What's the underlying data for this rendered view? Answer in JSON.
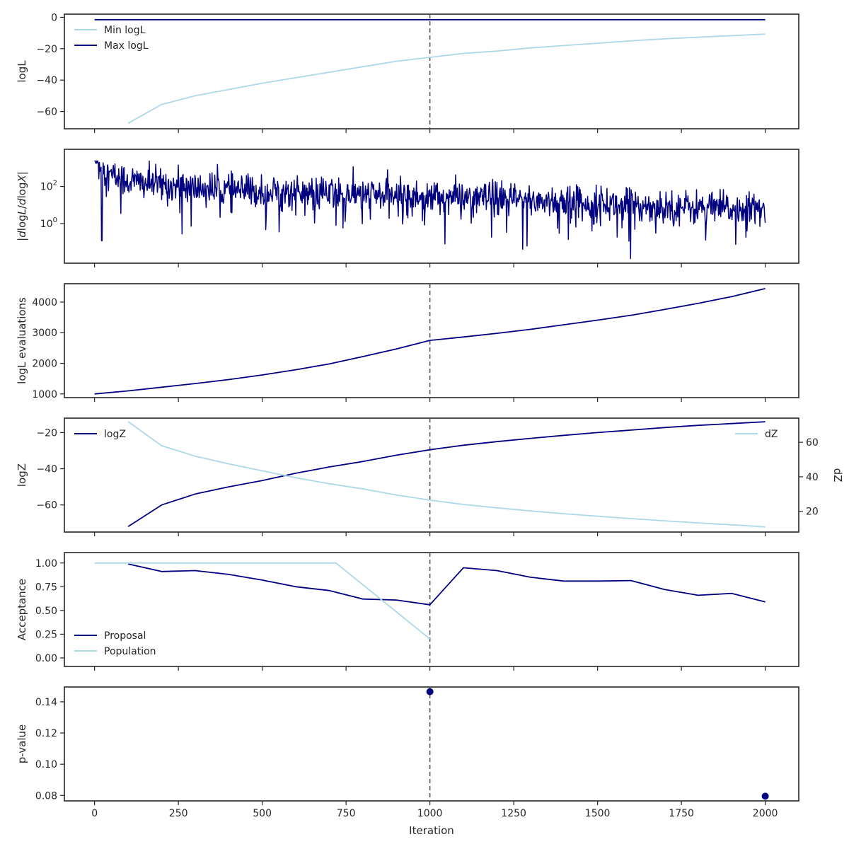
{
  "figure": {
    "xlabel": "Iteration",
    "xlim": [
      -90,
      2100
    ],
    "xticks": [
      0,
      250,
      500,
      750,
      1000,
      1250,
      1500,
      1750,
      2000
    ],
    "vline_x": 1000,
    "colors": {
      "light": "#add8e6",
      "dark": "#000080",
      "vline": "#555555",
      "frame": "#262626"
    }
  },
  "chart_data": [
    {
      "type": "line",
      "ylabel": "logL",
      "ylim": [
        -71,
        2
      ],
      "yticks": [
        0,
        -20,
        -40,
        -60
      ],
      "yticklabels": [
        "0",
        "−20",
        "−40",
        "−60"
      ],
      "legend": "upper-left",
      "series": [
        {
          "name": "Min logL",
          "color": "light",
          "x": [
            100,
            200,
            300,
            400,
            500,
            600,
            700,
            800,
            900,
            1000,
            1100,
            1200,
            1300,
            1400,
            1500,
            1600,
            1700,
            1800,
            1900,
            2000
          ],
          "y": [
            -67.5,
            -55.5,
            -50,
            -46,
            -42,
            -38.5,
            -35,
            -31.5,
            -28,
            -25.5,
            -23,
            -21.5,
            -19.5,
            -18,
            -16.5,
            -15,
            -13.7,
            -12.7,
            -11.7,
            -10.7
          ]
        },
        {
          "name": "Max logL",
          "color": "dark",
          "x": [
            0,
            2000
          ],
          "y": [
            -1.5,
            -1.5
          ]
        }
      ]
    },
    {
      "type": "line",
      "ylabel": "|dlogL/dlogX|",
      "yscale": "log",
      "ylim": [
        0.0074,
        10000
      ],
      "yticks": [
        1,
        100
      ],
      "yticklabels": [
        "10^0",
        "10^2"
      ],
      "series": [
        {
          "name": "",
          "color": "dark",
          "noise": true,
          "x": [
            0,
            100,
            200,
            300,
            400,
            500,
            600,
            700,
            800,
            900,
            1000,
            1100,
            1200,
            1300,
            1400,
            1500,
            1600,
            1700,
            1800,
            1900,
            2000
          ],
          "y": [
            700,
            200,
            120,
            80,
            60,
            50,
            45,
            40,
            35,
            30,
            28,
            25,
            20,
            18,
            15,
            12,
            10,
            8,
            7,
            6,
            5
          ]
        }
      ]
    },
    {
      "type": "line",
      "ylabel": "logL evaluations",
      "ylim": [
        880,
        4600
      ],
      "yticks": [
        1000,
        2000,
        3000,
        4000
      ],
      "yticklabels": [
        "1000",
        "2000",
        "3000",
        "4000"
      ],
      "series": [
        {
          "name": "",
          "color": "dark",
          "x": [
            0,
            100,
            200,
            300,
            400,
            500,
            600,
            700,
            800,
            900,
            1000,
            1100,
            1200,
            1300,
            1400,
            1500,
            1600,
            1700,
            1800,
            1900,
            2000
          ],
          "y": [
            1000,
            1100,
            1220,
            1340,
            1470,
            1620,
            1790,
            1980,
            2220,
            2470,
            2750,
            2860,
            2980,
            3110,
            3260,
            3410,
            3570,
            3760,
            3960,
            4180,
            4440
          ]
        }
      ]
    },
    {
      "type": "line",
      "ylabel": "logZ",
      "ylim": [
        -75,
        -12
      ],
      "yticks": [
        -20,
        -40,
        -60
      ],
      "yticklabels": [
        "−20",
        "−40",
        "−60"
      ],
      "legend": "upper-left",
      "series": [
        {
          "name": "logZ",
          "color": "dark",
          "x": [
            100,
            200,
            300,
            400,
            500,
            600,
            700,
            800,
            900,
            1000,
            1100,
            1200,
            1300,
            1400,
            1500,
            1600,
            1700,
            1800,
            1900,
            2000
          ],
          "y": [
            -72,
            -60,
            -54,
            -50,
            -46.5,
            -42.5,
            -39,
            -36,
            -32.5,
            -29.5,
            -27,
            -25,
            -23.2,
            -21.5,
            -20,
            -18.6,
            -17.2,
            -16,
            -15,
            -14
          ]
        }
      ],
      "twin": {
        "ylabel": "dZ",
        "ylim": [
          8,
          74
        ],
        "yticks": [
          20,
          40,
          60
        ],
        "yticklabels": [
          "20",
          "40",
          "60"
        ],
        "legend": "upper-right",
        "series": [
          {
            "name": "dZ",
            "color": "light",
            "x": [
              100,
              200,
              300,
              400,
              500,
              600,
              700,
              800,
              900,
              1000,
              1100,
              1200,
              1300,
              1400,
              1500,
              1600,
              1700,
              1800,
              1900,
              2000
            ],
            "y": [
              72,
              58,
              52,
              47.5,
              43.5,
              39.5,
              36,
              33,
              29.5,
              26.5,
              24,
              22,
              20.2,
              18.6,
              17.2,
              15.8,
              14.5,
              13.3,
              12.2,
              11
            ]
          }
        ]
      }
    },
    {
      "type": "line",
      "ylabel": "Acceptance",
      "ylim": [
        -0.09,
        1.11
      ],
      "yticks": [
        0,
        0.25,
        0.5,
        0.75,
        1
      ],
      "yticklabels": [
        "0.00",
        "0.25",
        "0.50",
        "0.75",
        "1.00"
      ],
      "legend": "lower-left",
      "series": [
        {
          "name": "Proposal",
          "color": "dark",
          "x": [
            100,
            200,
            300,
            400,
            500,
            600,
            700,
            800,
            900,
            1000,
            1100,
            1200,
            1300,
            1400,
            1500,
            1600,
            1700,
            1800,
            1900,
            2000
          ],
          "y": [
            0.99,
            0.91,
            0.92,
            0.88,
            0.82,
            0.75,
            0.71,
            0.62,
            0.61,
            0.56,
            0.95,
            0.92,
            0.85,
            0.81,
            0.81,
            0.815,
            0.72,
            0.66,
            0.68,
            0.59
          ]
        },
        {
          "name": "Population",
          "color": "light",
          "x": [
            0,
            720,
            1000
          ],
          "y": [
            1,
            1,
            0.2
          ]
        }
      ]
    },
    {
      "type": "scatter",
      "ylabel": "p-value",
      "ylim": [
        0.0765,
        0.1495
      ],
      "yticks": [
        0.08,
        0.1,
        0.12,
        0.14
      ],
      "yticklabels": [
        "0.08",
        "0.10",
        "0.12",
        "0.14"
      ],
      "series": [
        {
          "name": "",
          "color": "dark",
          "x": [
            1000,
            2000
          ],
          "y": [
            0.1465,
            0.0795
          ]
        }
      ]
    }
  ]
}
